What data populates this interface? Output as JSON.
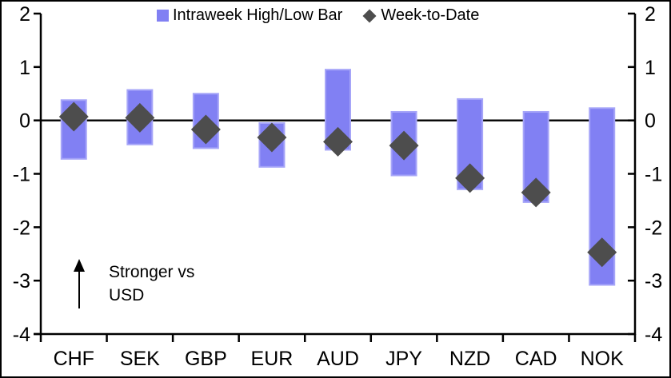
{
  "chart_data": {
    "type": "bar",
    "subtype": "floating-range-bars-with-point-markers",
    "title": "",
    "xlabel": "",
    "ylabel": "",
    "categories": [
      "CHF",
      "SEK",
      "GBP",
      "EUR",
      "AUD",
      "JPY",
      "NZD",
      "CAD",
      "NOK"
    ],
    "series": [
      {
        "name": "Intraweek High/Low Bar",
        "marker": "bar",
        "high": [
          0.38,
          0.57,
          0.5,
          -0.05,
          0.95,
          0.16,
          0.4,
          0.16,
          0.23
        ],
        "low": [
          -0.72,
          -0.45,
          -0.52,
          -0.87,
          -0.55,
          -1.03,
          -1.29,
          -1.53,
          -3.08
        ]
      },
      {
        "name": "Week-to-Date",
        "marker": "diamond",
        "values": [
          0.07,
          0.05,
          -0.17,
          -0.32,
          -0.4,
          -0.47,
          -1.08,
          -1.35,
          -2.47
        ]
      }
    ],
    "ylim": [
      -4,
      2
    ],
    "yticks": [
      2,
      1,
      0,
      -1,
      -2,
      -3,
      -4
    ],
    "mirrored_right_axis": true,
    "grid": false,
    "zero_line": true,
    "legend_position": "top-center"
  },
  "annotation": {
    "lines": [
      "Stronger vs",
      "USD"
    ],
    "arrow_direction": "up"
  },
  "colors": {
    "bar_fill": "#8180F3",
    "bar_border": "#A6A5F8",
    "diamond": "#4D4D4D",
    "axis": "#000000",
    "text": "#000000",
    "background": "#FFFFFF"
  }
}
